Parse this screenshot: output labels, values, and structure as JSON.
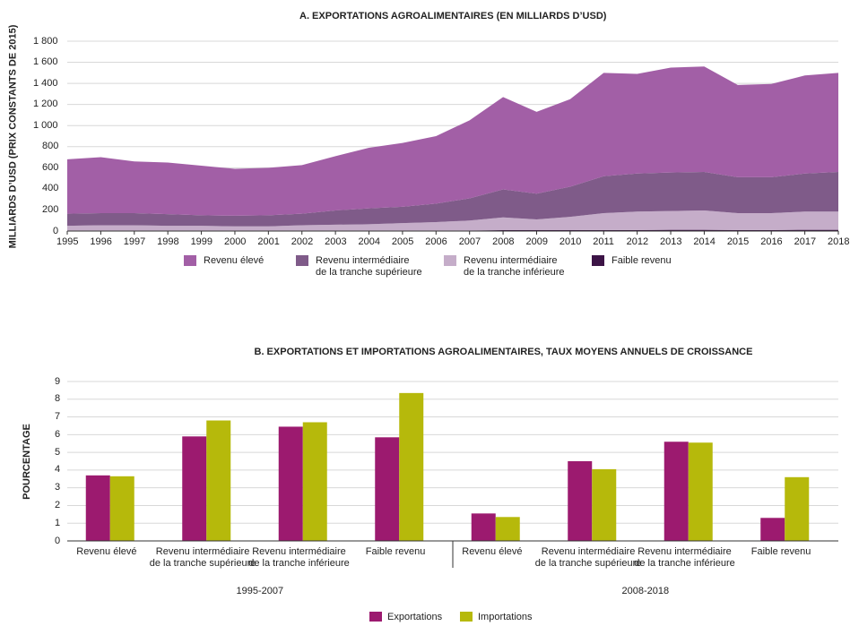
{
  "chart_data": [
    {
      "type": "area",
      "title": "A. EXPORTATIONS AGROALIMENTAIRES (EN MILLIARDS D’USD)",
      "y_label": "MILLIARDS D’USD (PRIX CONSTANTS DE 2015)",
      "x": [
        1995,
        1996,
        1997,
        1998,
        1999,
        2000,
        2001,
        2002,
        2003,
        2004,
        2005,
        2006,
        2007,
        2008,
        2009,
        2010,
        2011,
        2012,
        2013,
        2014,
        2015,
        2016,
        2017,
        2018
      ],
      "xlim": [
        1995,
        2018
      ],
      "ylim": [
        0,
        1800
      ],
      "yticks": [
        0,
        200,
        400,
        600,
        800,
        {
          "value": 1000,
          "label": "1 000"
        },
        {
          "value": 1200,
          "label": "1 200"
        },
        {
          "value": 1400,
          "label": "1 400"
        },
        {
          "value": 1600,
          "label": "1 600"
        },
        {
          "value": 1800,
          "label": "1 800"
        }
      ],
      "stacked": true,
      "series": [
        {
          "name": "Faible revenu",
          "color": "#3c1446",
          "values": [
            5,
            5,
            5,
            5,
            5,
            5,
            5,
            5,
            5,
            5,
            5,
            5,
            5,
            8,
            8,
            8,
            10,
            10,
            12,
            12,
            10,
            10,
            12,
            12
          ]
        },
        {
          "name": "Revenu intermédiaire\nde la tranche inférieure",
          "color": "#c5adc9",
          "values": [
            45,
            50,
            50,
            45,
            45,
            40,
            40,
            50,
            55,
            60,
            70,
            80,
            95,
            122,
            102,
            127,
            160,
            175,
            178,
            183,
            160,
            160,
            173,
            173
          ]
        },
        {
          "name": "Revenu intermédiaire\nde la tranche supérieure",
          "color": "#7f5b89",
          "values": [
            115,
            115,
            115,
            110,
            100,
            100,
            105,
            110,
            135,
            150,
            155,
            175,
            210,
            265,
            245,
            285,
            350,
            360,
            365,
            365,
            340,
            340,
            360,
            375
          ]
        },
        {
          "name": "Revenu élevé",
          "color": "#a25fa6",
          "values": [
            515,
            530,
            490,
            490,
            470,
            445,
            450,
            460,
            515,
            575,
            605,
            640,
            740,
            875,
            775,
            830,
            980,
            945,
            995,
            1000,
            875,
            885,
            930,
            940
          ]
        }
      ]
    },
    {
      "type": "bar",
      "title": "B. EXPORTATIONS ET IMPORTATIONS AGROALIMENTAIRES, TAUX MOYENS ANNUELS DE CROISSANCE",
      "y_label": "POURCENTAGE",
      "categories": [
        "Revenu élevé",
        "Revenu intermédiaire\nde la tranche supérieure",
        "Revenu intermédiaire\nde la tranche inférieure",
        "Faible revenu",
        "Revenu élevé",
        "Revenu intermédiaire\nde la tranche supérieure",
        "Revenu intermédiaire\nde la tranche inférieure",
        "Faible revenu"
      ],
      "groups": [
        "1995-2007",
        "2008-2018"
      ],
      "ylim": [
        0,
        9
      ],
      "yticks": [
        0,
        1,
        2,
        3,
        4,
        5,
        6,
        7,
        8,
        9
      ],
      "series": [
        {
          "name": "Exportations",
          "color": "#9c1a6f",
          "values": [
            3.7,
            5.9,
            6.45,
            5.85,
            1.55,
            4.5,
            5.6,
            1.3
          ]
        },
        {
          "name": "Importations",
          "color": "#b6b90b",
          "values": [
            3.65,
            6.8,
            6.7,
            8.35,
            1.35,
            4.05,
            5.55,
            3.6
          ]
        }
      ]
    }
  ]
}
